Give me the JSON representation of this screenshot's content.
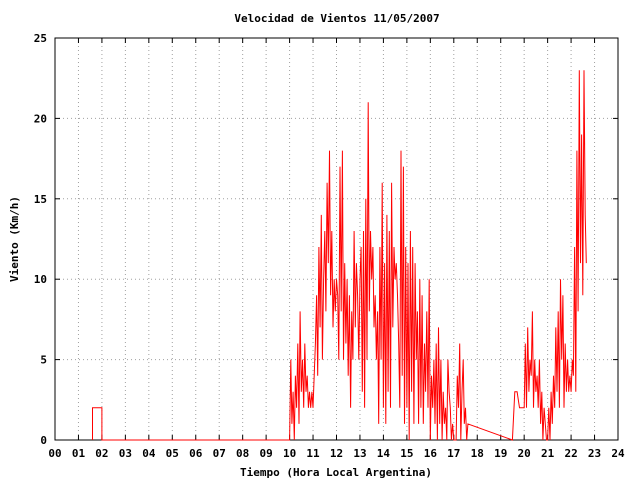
{
  "chart_data": {
    "type": "line",
    "title": "Velocidad de Vientos 11/05/2007",
    "xlabel": "Tiempo (Hora Local Argentina)",
    "ylabel": "Viento (Km/h)",
    "xlim": [
      0,
      24
    ],
    "ylim": [
      0,
      25
    ],
    "x_ticks": [
      "00",
      "01",
      "02",
      "03",
      "04",
      "05",
      "06",
      "07",
      "08",
      "09",
      "10",
      "11",
      "12",
      "13",
      "14",
      "15",
      "16",
      "17",
      "18",
      "19",
      "20",
      "21",
      "22",
      "23",
      "24"
    ],
    "y_ticks": [
      "0",
      "5",
      "10",
      "15",
      "20",
      "25"
    ],
    "grid": true,
    "line_color": "#ff0000",
    "series": [
      {
        "x": [
          1.6,
          1.6,
          2.0,
          2.0,
          10.0,
          10.05,
          10.1,
          10.15,
          10.2,
          10.25,
          10.3,
          10.35,
          10.4,
          10.45,
          10.5,
          10.55,
          10.6,
          10.65,
          10.7,
          10.75,
          10.8,
          10.85,
          10.9,
          10.95,
          11.0,
          11.05,
          11.1,
          11.15,
          11.2,
          11.25,
          11.3,
          11.35,
          11.4,
          11.45,
          11.5,
          11.55,
          11.6,
          11.65,
          11.7,
          11.75,
          11.8,
          11.85,
          11.9,
          11.95,
          12.0,
          12.05,
          12.1,
          12.15,
          12.2,
          12.25,
          12.3,
          12.35,
          12.4,
          12.45,
          12.5,
          12.55,
          12.6,
          12.65,
          12.7,
          12.75,
          12.8,
          12.85,
          12.9,
          12.95,
          13.0,
          13.05,
          13.1,
          13.15,
          13.2,
          13.25,
          13.3,
          13.35,
          13.4,
          13.45,
          13.5,
          13.55,
          13.6,
          13.65,
          13.7,
          13.75,
          13.8,
          13.85,
          13.9,
          13.95,
          14.0,
          14.05,
          14.1,
          14.15,
          14.2,
          14.25,
          14.3,
          14.35,
          14.4,
          14.45,
          14.5,
          14.55,
          14.6,
          14.65,
          14.7,
          14.75,
          14.8,
          14.85,
          14.9,
          14.95,
          15.0,
          15.05,
          15.1,
          15.15,
          15.2,
          15.25,
          15.3,
          15.35,
          15.4,
          15.45,
          15.5,
          15.55,
          15.6,
          15.65,
          15.7,
          15.75,
          15.8,
          15.85,
          15.9,
          15.95,
          16.0,
          16.05,
          16.1,
          16.15,
          16.2,
          16.25,
          16.3,
          16.35,
          16.4,
          16.45,
          16.5,
          16.55,
          16.6,
          16.65,
          16.7,
          16.75,
          16.8,
          16.85,
          16.9,
          16.95,
          17.0,
          17.05,
          17.1,
          17.15,
          17.2,
          17.25,
          17.3,
          17.35,
          17.4,
          17.45,
          17.5,
          17.55,
          17.6,
          19.5,
          19.6,
          19.7,
          19.8,
          19.9,
          20.0,
          20.05,
          20.1,
          20.15,
          20.2,
          20.25,
          20.3,
          20.35,
          20.4,
          20.45,
          20.5,
          20.55,
          20.6,
          20.65,
          20.7,
          20.75,
          20.8,
          20.85,
          20.9,
          20.95,
          21.0,
          21.05,
          21.1,
          21.15,
          21.2,
          21.25,
          21.3,
          21.35,
          21.4,
          21.45,
          21.5,
          21.55,
          21.6,
          21.65,
          21.7,
          21.75,
          21.8,
          21.85,
          21.9,
          21.95,
          22.0,
          22.05,
          22.1,
          22.15,
          22.2,
          22.25,
          22.3,
          22.35,
          22.4,
          22.45,
          22.5,
          22.55,
          22.6,
          22.65
        ],
        "y": [
          0,
          2,
          2,
          0,
          0,
          5,
          1,
          3,
          0,
          4,
          2,
          6,
          1,
          8,
          3,
          5,
          2,
          6,
          3,
          4,
          2,
          3,
          2,
          3,
          2,
          4,
          6,
          9,
          4,
          12,
          7,
          14,
          5,
          10,
          13,
          8,
          16,
          11,
          18,
          9,
          13,
          7,
          10,
          8,
          10,
          9,
          5,
          17,
          8,
          18,
          5,
          11,
          6,
          10,
          4,
          9,
          2,
          8,
          5,
          13,
          7,
          11,
          9,
          5,
          10,
          12,
          3,
          13,
          2,
          15,
          5,
          21,
          8,
          13,
          10,
          12,
          7,
          9,
          5,
          8,
          1,
          12,
          5,
          16,
          2,
          11,
          1,
          14,
          3,
          13,
          2,
          16,
          7,
          12,
          10,
          11,
          9,
          6,
          2,
          18,
          4,
          17,
          1,
          12,
          2,
          11,
          0,
          13,
          3,
          12,
          1,
          11,
          5,
          8,
          1,
          10,
          2,
          9,
          1,
          6,
          3,
          8,
          2,
          10,
          0,
          4,
          2,
          5,
          1,
          6,
          0,
          7,
          1,
          5,
          0,
          3,
          1,
          2,
          0,
          5,
          3,
          2,
          0,
          1,
          0,
          0,
          0,
          4,
          2,
          6,
          0,
          3,
          5,
          1,
          2,
          0,
          1,
          0,
          3,
          3,
          2,
          2,
          2,
          6,
          2,
          7,
          3,
          5,
          4,
          8,
          2,
          5,
          3,
          4,
          2,
          5,
          1,
          3,
          0,
          2,
          1,
          0,
          0,
          2,
          0,
          3,
          1,
          4,
          2,
          7,
          3,
          8,
          2,
          10,
          5,
          9,
          2,
          6,
          3,
          5,
          3,
          4,
          3,
          5,
          4,
          12,
          3,
          18,
          8,
          23,
          11,
          19,
          9,
          23,
          14,
          11
        ]
      }
    ]
  }
}
